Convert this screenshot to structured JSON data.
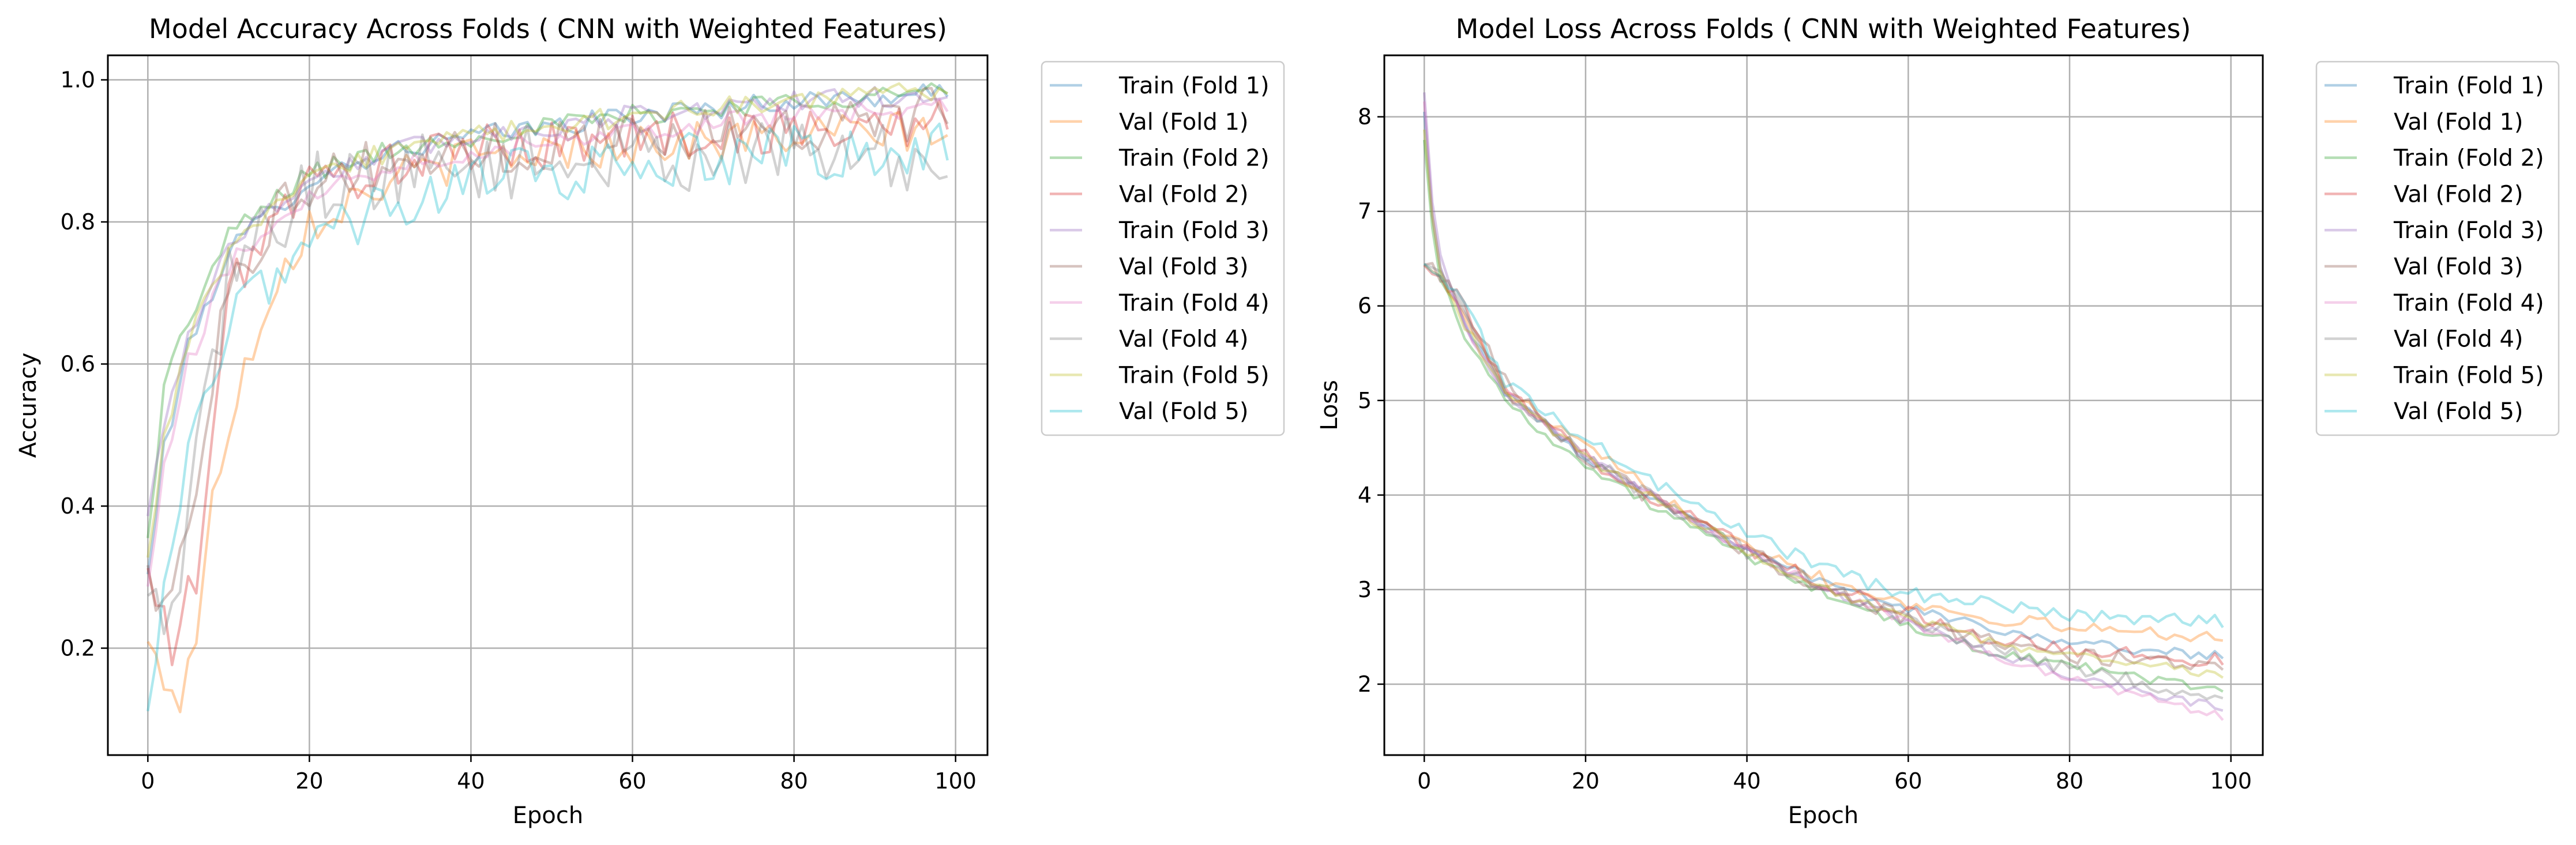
{
  "chart_data": [
    {
      "type": "line",
      "title": "Model Accuracy Across Folds ( CNN with Weighted Features)",
      "xlabel": "Epoch",
      "ylabel": "Accuracy",
      "xlim": [
        -4.95,
        103.95
      ],
      "ylim": [
        0.0495,
        1.0345
      ],
      "xticks": [
        0,
        20,
        40,
        60,
        80,
        100
      ],
      "yticks": [
        0.2,
        0.4,
        0.6,
        0.8,
        1.0
      ],
      "grid": true,
      "legend_position": "outside-right",
      "epochs": 100,
      "series": [
        {
          "name": "Train (Fold 1)",
          "color": "#1f77b4",
          "keypoints": [
            [
              0,
              0.3
            ],
            [
              2,
              0.48
            ],
            [
              5,
              0.62
            ],
            [
              10,
              0.76
            ],
            [
              20,
              0.86
            ],
            [
              30,
              0.9
            ],
            [
              40,
              0.92
            ],
            [
              60,
              0.95
            ],
            [
              80,
              0.97
            ],
            [
              99,
              0.98
            ]
          ],
          "noise": 0.015
        },
        {
          "name": "Val (Fold 1)",
          "color": "#ff7f0e",
          "keypoints": [
            [
              0,
              0.2
            ],
            [
              2,
              0.16
            ],
            [
              4,
              0.13
            ],
            [
              6,
              0.22
            ],
            [
              8,
              0.4
            ],
            [
              10,
              0.52
            ],
            [
              15,
              0.7
            ],
            [
              20,
              0.8
            ],
            [
              30,
              0.86
            ],
            [
              40,
              0.89
            ],
            [
              60,
              0.91
            ],
            [
              80,
              0.92
            ],
            [
              99,
              0.93
            ]
          ],
          "noise": 0.03
        },
        {
          "name": "Train (Fold 2)",
          "color": "#2ca02c",
          "keypoints": [
            [
              0,
              0.35
            ],
            [
              2,
              0.57
            ],
            [
              5,
              0.66
            ],
            [
              10,
              0.78
            ],
            [
              20,
              0.87
            ],
            [
              30,
              0.9
            ],
            [
              40,
              0.92
            ],
            [
              60,
              0.95
            ],
            [
              80,
              0.97
            ],
            [
              99,
              0.985
            ]
          ],
          "noise": 0.015
        },
        {
          "name": "Val (Fold 2)",
          "color": "#d62728",
          "keypoints": [
            [
              0,
              0.3
            ],
            [
              3,
              0.2
            ],
            [
              6,
              0.3
            ],
            [
              10,
              0.7
            ],
            [
              15,
              0.8
            ],
            [
              20,
              0.85
            ],
            [
              30,
              0.88
            ],
            [
              40,
              0.9
            ],
            [
              60,
              0.92
            ],
            [
              80,
              0.93
            ],
            [
              99,
              0.94
            ]
          ],
          "noise": 0.035
        },
        {
          "name": "Train (Fold 3)",
          "color": "#9467bd",
          "keypoints": [
            [
              0,
              0.38
            ],
            [
              2,
              0.52
            ],
            [
              5,
              0.64
            ],
            [
              10,
              0.77
            ],
            [
              20,
              0.86
            ],
            [
              30,
              0.9
            ],
            [
              40,
              0.92
            ],
            [
              60,
              0.95
            ],
            [
              80,
              0.97
            ],
            [
              99,
              0.98
            ]
          ],
          "noise": 0.015
        },
        {
          "name": "Val (Fold 3)",
          "color": "#8c564b",
          "keypoints": [
            [
              0,
              0.3
            ],
            [
              3,
              0.25
            ],
            [
              6,
              0.45
            ],
            [
              10,
              0.72
            ],
            [
              15,
              0.8
            ],
            [
              20,
              0.86
            ],
            [
              30,
              0.88
            ],
            [
              40,
              0.9
            ],
            [
              60,
              0.92
            ],
            [
              80,
              0.94
            ],
            [
              99,
              0.95
            ]
          ],
          "noise": 0.04
        },
        {
          "name": "Train (Fold 4)",
          "color": "#e377c2",
          "keypoints": [
            [
              0,
              0.28
            ],
            [
              2,
              0.45
            ],
            [
              5,
              0.6
            ],
            [
              10,
              0.74
            ],
            [
              20,
              0.84
            ],
            [
              30,
              0.88
            ],
            [
              40,
              0.9
            ],
            [
              60,
              0.93
            ],
            [
              80,
              0.95
            ],
            [
              99,
              0.96
            ]
          ],
          "noise": 0.015
        },
        {
          "name": "Val (Fold 4)",
          "color": "#7f7f7f",
          "keypoints": [
            [
              0,
              0.25
            ],
            [
              3,
              0.25
            ],
            [
              6,
              0.45
            ],
            [
              10,
              0.73
            ],
            [
              20,
              0.85
            ],
            [
              30,
              0.87
            ],
            [
              40,
              0.88
            ],
            [
              60,
              0.89
            ],
            [
              80,
              0.9
            ],
            [
              99,
              0.88
            ]
          ],
          "noise": 0.05
        },
        {
          "name": "Train (Fold 5)",
          "color": "#bcbd22",
          "keypoints": [
            [
              0,
              0.32
            ],
            [
              2,
              0.5
            ],
            [
              5,
              0.63
            ],
            [
              10,
              0.76
            ],
            [
              20,
              0.86
            ],
            [
              30,
              0.9
            ],
            [
              40,
              0.92
            ],
            [
              60,
              0.95
            ],
            [
              80,
              0.97
            ],
            [
              99,
              0.985
            ]
          ],
          "noise": 0.015
        },
        {
          "name": "Val (Fold 5)",
          "color": "#17becf",
          "keypoints": [
            [
              0,
              0.09
            ],
            [
              3,
              0.35
            ],
            [
              6,
              0.5
            ],
            [
              10,
              0.65
            ],
            [
              15,
              0.72
            ],
            [
              20,
              0.78
            ],
            [
              30,
              0.82
            ],
            [
              40,
              0.86
            ],
            [
              60,
              0.88
            ],
            [
              80,
              0.9
            ],
            [
              99,
              0.9
            ]
          ],
          "noise": 0.04
        }
      ]
    },
    {
      "type": "line",
      "title": "Model Loss Across Folds ( CNN with Weighted Features)",
      "xlabel": "Epoch",
      "ylabel": "Loss",
      "xlim": [
        -4.95,
        103.95
      ],
      "ylim": [
        1.25,
        8.65
      ],
      "xticks": [
        0,
        20,
        40,
        60,
        80,
        100
      ],
      "yticks": [
        2,
        3,
        4,
        5,
        6,
        7,
        8
      ],
      "grid": true,
      "legend_position": "outside-right",
      "epochs": 100,
      "series": [
        {
          "name": "Train (Fold 1)",
          "color": "#1f77b4",
          "keypoints": [
            [
              0,
              8.1
            ],
            [
              1,
              7.0
            ],
            [
              2,
              6.4
            ],
            [
              5,
              5.8
            ],
            [
              10,
              5.1
            ],
            [
              20,
              4.4
            ],
            [
              30,
              3.9
            ],
            [
              40,
              3.45
            ],
            [
              50,
              3.05
            ],
            [
              60,
              2.8
            ],
            [
              70,
              2.6
            ],
            [
              80,
              2.45
            ],
            [
              90,
              2.35
            ],
            [
              99,
              2.3
            ]
          ],
          "noise": 0.05
        },
        {
          "name": "Val (Fold 1)",
          "color": "#ff7f0e",
          "keypoints": [
            [
              0,
              6.5
            ],
            [
              5,
              5.9
            ],
            [
              10,
              5.1
            ],
            [
              20,
              4.5
            ],
            [
              30,
              3.95
            ],
            [
              40,
              3.5
            ],
            [
              50,
              3.1
            ],
            [
              60,
              2.85
            ],
            [
              70,
              2.7
            ],
            [
              80,
              2.6
            ],
            [
              90,
              2.55
            ],
            [
              99,
              2.5
            ]
          ],
          "noise": 0.07
        },
        {
          "name": "Train (Fold 2)",
          "color": "#2ca02c",
          "keypoints": [
            [
              0,
              7.8
            ],
            [
              1,
              6.8
            ],
            [
              2,
              6.3
            ],
            [
              5,
              5.7
            ],
            [
              10,
              5.0
            ],
            [
              20,
              4.3
            ],
            [
              30,
              3.8
            ],
            [
              40,
              3.35
            ],
            [
              50,
              2.95
            ],
            [
              60,
              2.6
            ],
            [
              70,
              2.35
            ],
            [
              80,
              2.2
            ],
            [
              90,
              2.05
            ],
            [
              99,
              1.95
            ]
          ],
          "noise": 0.05
        },
        {
          "name": "Val (Fold 2)",
          "color": "#d62728",
          "keypoints": [
            [
              0,
              6.5
            ],
            [
              5,
              6.0
            ],
            [
              10,
              5.1
            ],
            [
              20,
              4.4
            ],
            [
              30,
              3.9
            ],
            [
              40,
              3.45
            ],
            [
              50,
              3.05
            ],
            [
              60,
              2.75
            ],
            [
              70,
              2.5
            ],
            [
              80,
              2.35
            ],
            [
              90,
              2.3
            ],
            [
              99,
              2.25
            ]
          ],
          "noise": 0.08
        },
        {
          "name": "Train (Fold 3)",
          "color": "#9467bd",
          "keypoints": [
            [
              0,
              8.3
            ],
            [
              1,
              7.1
            ],
            [
              2,
              6.5
            ],
            [
              5,
              5.8
            ],
            [
              10,
              5.1
            ],
            [
              20,
              4.4
            ],
            [
              30,
              3.9
            ],
            [
              40,
              3.4
            ],
            [
              50,
              3.0
            ],
            [
              60,
              2.65
            ],
            [
              70,
              2.35
            ],
            [
              80,
              2.1
            ],
            [
              90,
              1.9
            ],
            [
              99,
              1.75
            ]
          ],
          "noise": 0.05
        },
        {
          "name": "Val (Fold 3)",
          "color": "#8c564b",
          "keypoints": [
            [
              0,
              6.5
            ],
            [
              5,
              6.0
            ],
            [
              10,
              5.2
            ],
            [
              20,
              4.4
            ],
            [
              30,
              3.85
            ],
            [
              40,
              3.4
            ],
            [
              50,
              3.0
            ],
            [
              60,
              2.7
            ],
            [
              70,
              2.45
            ],
            [
              80,
              2.3
            ],
            [
              90,
              2.25
            ],
            [
              99,
              2.2
            ]
          ],
          "noise": 0.08
        },
        {
          "name": "Train (Fold 4)",
          "color": "#e377c2",
          "keypoints": [
            [
              0,
              8.2
            ],
            [
              1,
              7.0
            ],
            [
              2,
              6.4
            ],
            [
              5,
              5.8
            ],
            [
              10,
              5.1
            ],
            [
              20,
              4.4
            ],
            [
              30,
              3.9
            ],
            [
              40,
              3.4
            ],
            [
              50,
              3.0
            ],
            [
              60,
              2.65
            ],
            [
              70,
              2.3
            ],
            [
              80,
              2.05
            ],
            [
              90,
              1.85
            ],
            [
              99,
              1.65
            ]
          ],
          "noise": 0.05
        },
        {
          "name": "Val (Fold 4)",
          "color": "#7f7f7f",
          "keypoints": [
            [
              0,
              6.5
            ],
            [
              5,
              6.0
            ],
            [
              10,
              5.1
            ],
            [
              20,
              4.4
            ],
            [
              30,
              3.9
            ],
            [
              40,
              3.4
            ],
            [
              50,
              3.0
            ],
            [
              60,
              2.7
            ],
            [
              70,
              2.4
            ],
            [
              80,
              2.15
            ],
            [
              90,
              2.0
            ],
            [
              99,
              1.9
            ]
          ],
          "noise": 0.08
        },
        {
          "name": "Train (Fold 5)",
          "color": "#bcbd22",
          "keypoints": [
            [
              0,
              7.9
            ],
            [
              1,
              6.9
            ],
            [
              2,
              6.4
            ],
            [
              5,
              5.8
            ],
            [
              10,
              5.1
            ],
            [
              20,
              4.4
            ],
            [
              30,
              3.9
            ],
            [
              40,
              3.4
            ],
            [
              50,
              3.0
            ],
            [
              60,
              2.7
            ],
            [
              70,
              2.45
            ],
            [
              80,
              2.3
            ],
            [
              90,
              2.2
            ],
            [
              99,
              2.1
            ]
          ],
          "noise": 0.05
        },
        {
          "name": "Val (Fold 5)",
          "color": "#17becf",
          "keypoints": [
            [
              0,
              6.5
            ],
            [
              5,
              6.0
            ],
            [
              10,
              5.2
            ],
            [
              20,
              4.6
            ],
            [
              30,
              4.05
            ],
            [
              40,
              3.6
            ],
            [
              50,
              3.2
            ],
            [
              60,
              2.95
            ],
            [
              70,
              2.85
            ],
            [
              80,
              2.75
            ],
            [
              90,
              2.7
            ],
            [
              99,
              2.65
            ]
          ],
          "noise": 0.08
        }
      ]
    }
  ]
}
